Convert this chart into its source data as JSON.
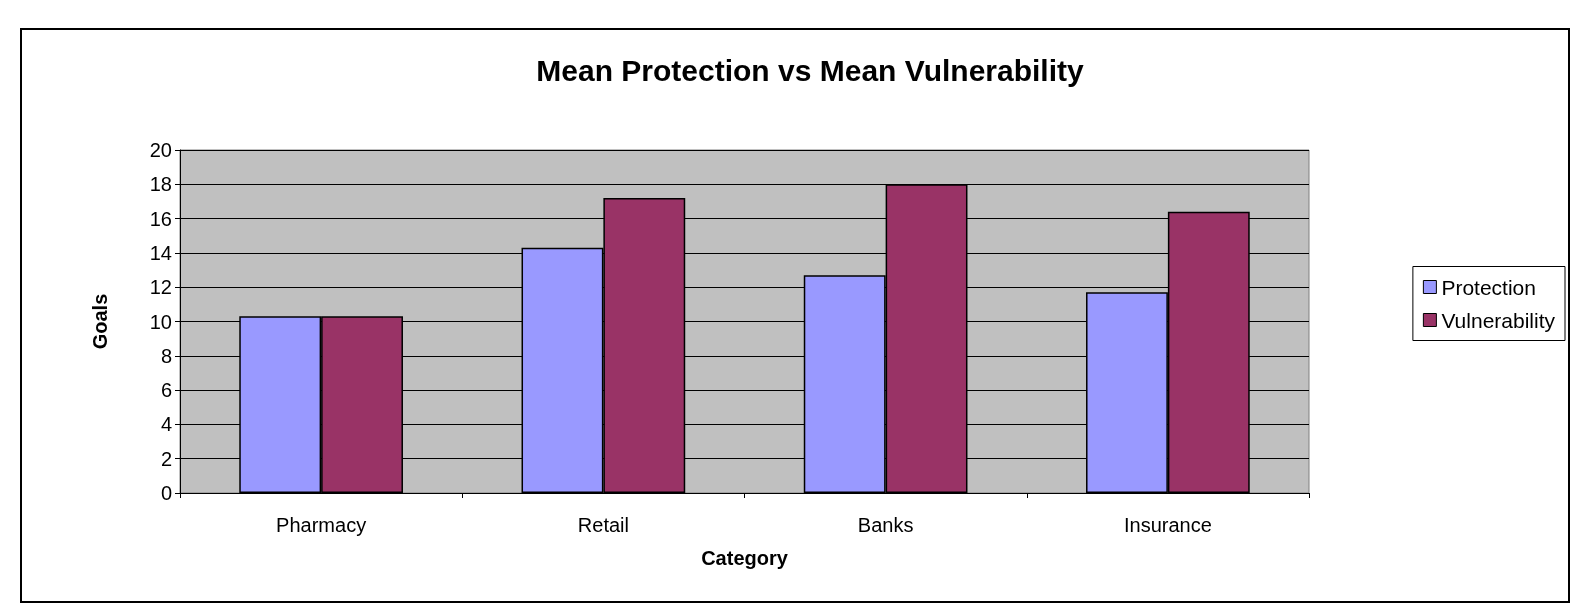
{
  "chart_data": {
    "type": "bar",
    "title": "Mean Protection vs Mean Vulnerability",
    "xlabel": "Category",
    "ylabel": "Goals",
    "categories": [
      "Pharmacy",
      "Retail",
      "Banks",
      "Insurance"
    ],
    "series": [
      {
        "name": "Protection",
        "color": "#9999ff",
        "values": [
          10.3,
          14.3,
          12.7,
          11.7
        ]
      },
      {
        "name": "Vulnerability",
        "color": "#993366",
        "values": [
          10.3,
          17.2,
          18.0,
          16.4
        ]
      }
    ],
    "ylim": [
      0,
      20
    ],
    "yticks": [
      0,
      2,
      4,
      6,
      8,
      10,
      12,
      14,
      16,
      18,
      20
    ],
    "grid": "y",
    "legend": "right"
  }
}
